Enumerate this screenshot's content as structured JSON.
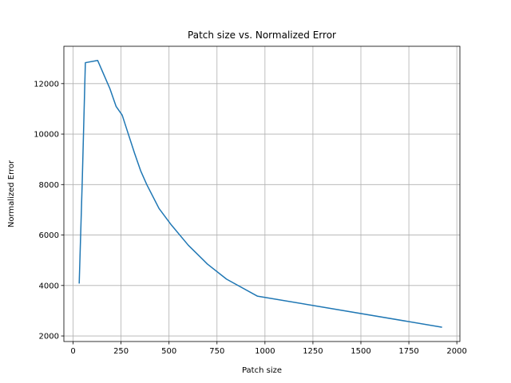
{
  "chart_data": {
    "type": "line",
    "title": "Patch size vs. Normalized Error",
    "xlabel": "Patch size",
    "ylabel": "Normalized Error",
    "xlim": [
      -48,
      2016
    ],
    "ylim": [
      1780,
      13480
    ],
    "xticks": [
      0,
      250,
      500,
      750,
      1000,
      1250,
      1500,
      1750,
      2000
    ],
    "yticks": [
      2000,
      4000,
      6000,
      8000,
      10000,
      12000
    ],
    "grid": true,
    "series": [
      {
        "color": "#1f77b4",
        "x": [
          32,
          48,
          64,
          128,
          192,
          224,
          256,
          288,
          320,
          352,
          384,
          448,
          512,
          600,
          700,
          800,
          960,
          1920
        ],
        "y": [
          4100,
          8200,
          12830,
          12920,
          11800,
          11100,
          10750,
          10000,
          9250,
          8550,
          8000,
          7050,
          6400,
          5600,
          4850,
          4250,
          3580,
          2350
        ]
      }
    ]
  }
}
